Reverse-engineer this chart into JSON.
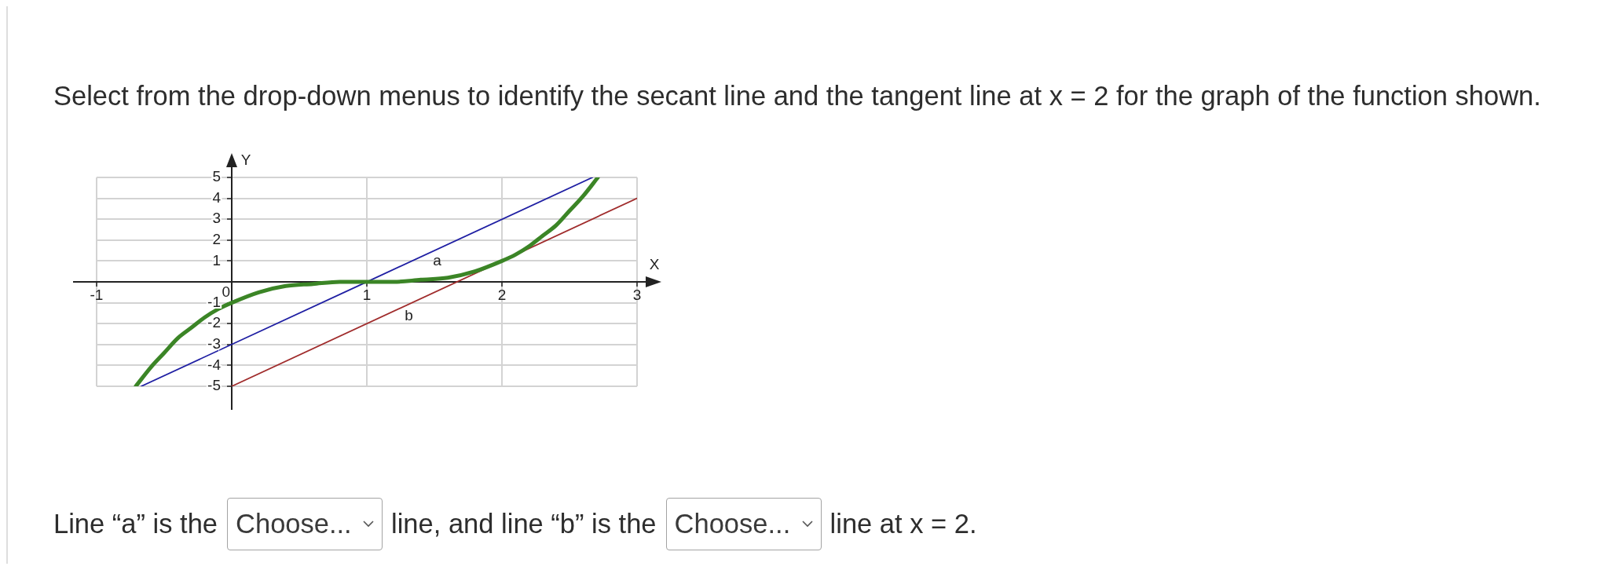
{
  "chart_data": {
    "type": "line",
    "title": "Select from the drop-down menus to identify the secant line and the tangent line at x = 2 for the graph of the function shown.",
    "xlabel": "X",
    "ylabel": "Y",
    "xlim": [
      -1,
      3
    ],
    "ylim": [
      -5,
      5
    ],
    "xticks": [
      -1,
      0,
      1,
      2,
      3
    ],
    "yticks": [
      -5,
      -4,
      -3,
      -2,
      -1,
      1,
      2,
      3,
      4,
      5
    ],
    "grid": true,
    "legend": false,
    "marker": "none",
    "line_style": "solid",
    "series": [
      {
        "color": "#3b8526",
        "x": [
          -0.71,
          -0.6,
          -0.5,
          -0.4,
          -0.3,
          -0.2,
          -0.1,
          0,
          0.2,
          0.4,
          0.6,
          0.8,
          1,
          1.2,
          1.4,
          1.6,
          1.8,
          2,
          2.1,
          2.2,
          2.3,
          2.4,
          2.5,
          2.6,
          2.71
        ],
        "values": [
          -5,
          -4.1,
          -3.4,
          -2.7,
          -2.2,
          -1.7,
          -1.3,
          -1,
          -0.5,
          -0.2,
          -0.1,
          0,
          0,
          0,
          0.1,
          0.2,
          0.5,
          1,
          1.3,
          1.7,
          2.2,
          2.7,
          3.4,
          4.1,
          5
        ]
      },
      {
        "name": "a",
        "color": "#1f1fa3",
        "x": [
          -0.67,
          2.67
        ],
        "values": [
          -5,
          5
        ]
      },
      {
        "name": "b",
        "color": "#a02c2c",
        "x": [
          0,
          3
        ],
        "values": [
          -5,
          4
        ]
      }
    ],
    "annotations": [
      "Line “a” is the",
      "Choose...",
      "line, and line “b” is the",
      "Choose...",
      "line at x = 2."
    ]
  }
}
